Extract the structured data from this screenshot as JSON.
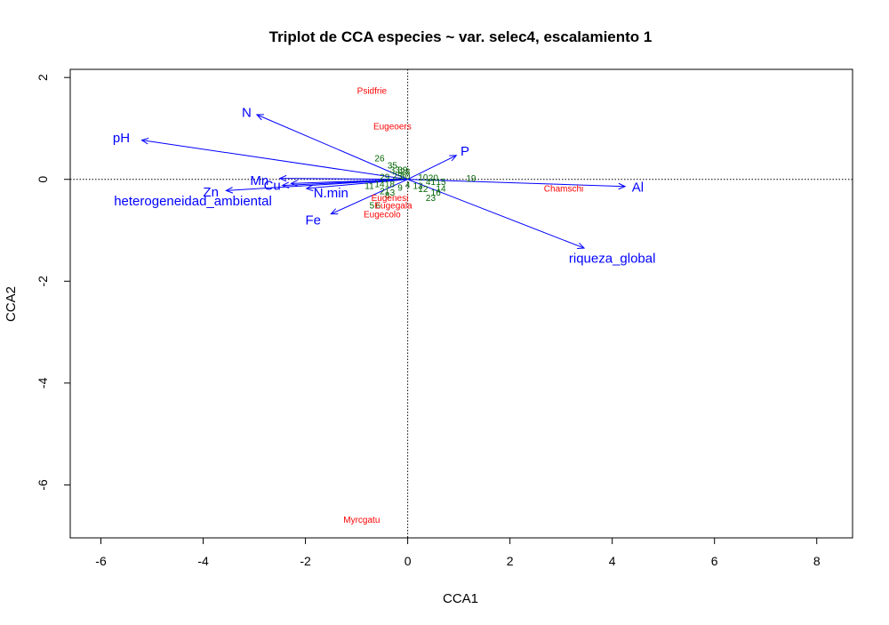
{
  "chart_data": {
    "type": "scatter",
    "title": "Triplot de CCA especies ~ var. selec4, escalamiento 1",
    "xlabel": "CCA1",
    "ylabel": "CCA2",
    "xlim": [
      -6.6,
      8.7
    ],
    "ylim": [
      -7.04,
      2.16
    ],
    "xticks": [
      -6,
      -4,
      -2,
      0,
      2,
      4,
      6,
      8
    ],
    "yticks": [
      -6,
      -4,
      -2,
      0,
      2
    ],
    "colors": {
      "sites": "#006400",
      "species": "#ff0000",
      "arrows": "#0000ff",
      "axes": "#000000"
    },
    "reference_lines": {
      "x": 0,
      "y": 0,
      "style": "dotted"
    },
    "species": [
      {
        "name": "Psidfrie",
        "x": -0.7,
        "y": 1.75
      },
      {
        "name": "Eugeoers",
        "x": -0.3,
        "y": 1.05
      },
      {
        "name": "Chamschi",
        "x": 3.05,
        "y": -0.17
      },
      {
        "name": "Eugenesi",
        "x": -0.35,
        "y": -0.35
      },
      {
        "name": "Eugegala",
        "x": -0.28,
        "y": -0.5
      },
      {
        "name": "Eugecolo",
        "x": -0.5,
        "y": -0.68
      },
      {
        "name": "Myrcgatu",
        "x": -0.9,
        "y": -6.67
      }
    ],
    "sites": [
      {
        "label": "26",
        "x": -0.55,
        "y": 0.42
      },
      {
        "label": "35",
        "x": -0.3,
        "y": 0.28
      },
      {
        "label": "33",
        "x": -0.25,
        "y": 0.2
      },
      {
        "label": "39",
        "x": -0.1,
        "y": 0.2
      },
      {
        "label": "28",
        "x": -0.05,
        "y": 0.16
      },
      {
        "label": "29",
        "x": -0.45,
        "y": 0.06
      },
      {
        "label": "25",
        "x": -0.2,
        "y": 0.07
      },
      {
        "label": "30",
        "x": -0.05,
        "y": 0.07
      },
      {
        "label": "10",
        "x": 0.3,
        "y": 0.05
      },
      {
        "label": "20",
        "x": 0.5,
        "y": 0.04
      },
      {
        "label": "41",
        "x": 0.45,
        "y": -0.04
      },
      {
        "label": "15",
        "x": 0.65,
        "y": -0.04
      },
      {
        "label": "19",
        "x": 1.24,
        "y": 0.03
      },
      {
        "label": "11",
        "x": -0.75,
        "y": -0.12
      },
      {
        "label": "14",
        "x": -0.55,
        "y": -0.08
      },
      {
        "label": "18",
        "x": -0.35,
        "y": -0.08
      },
      {
        "label": "4",
        "x": 0.0,
        "y": -0.1
      },
      {
        "label": "13",
        "x": 0.2,
        "y": -0.12
      },
      {
        "label": "12",
        "x": 0.3,
        "y": -0.18
      },
      {
        "label": "14",
        "x": 0.65,
        "y": -0.17
      },
      {
        "label": "16",
        "x": 0.55,
        "y": -0.25
      },
      {
        "label": "23",
        "x": 0.45,
        "y": -0.35
      },
      {
        "label": "21",
        "x": -0.45,
        "y": -0.22
      },
      {
        "label": "3",
        "x": -0.3,
        "y": -0.25
      },
      {
        "label": "5",
        "x": -0.7,
        "y": -0.5
      },
      {
        "label": "6",
        "x": -0.58,
        "y": -0.5
      },
      {
        "label": "8",
        "x": -0.4,
        "y": -0.3
      },
      {
        "label": "9",
        "x": -0.15,
        "y": -0.15
      }
    ],
    "arrows": [
      {
        "name": "pH",
        "x": -5.2,
        "y": 0.77,
        "label_x": -5.6,
        "label_y": 0.82
      },
      {
        "name": "N",
        "x": -2.95,
        "y": 1.27,
        "label_x": -3.15,
        "label_y": 1.31
      },
      {
        "name": "Mn",
        "x": -2.5,
        "y": 0.02,
        "label_x": -2.9,
        "label_y": -0.02
      },
      {
        "name": "Cu",
        "x": -2.28,
        "y": -0.08,
        "label_x": -2.65,
        "label_y": -0.12
      },
      {
        "name": "Zn",
        "x": -3.55,
        "y": -0.22,
        "label_x": -3.85,
        "label_y": -0.25
      },
      {
        "name": "heterogeneidad_ambiental",
        "x": -2.45,
        "y": -0.12,
        "label_x": -4.2,
        "label_y": -0.42
      },
      {
        "name": "N.min",
        "x": -1.98,
        "y": -0.18,
        "label_x": -1.5,
        "label_y": -0.27
      },
      {
        "name": "Fe",
        "x": -1.5,
        "y": -0.68,
        "label_x": -1.85,
        "label_y": -0.8
      },
      {
        "name": "P",
        "x": 0.95,
        "y": 0.47,
        "label_x": 1.12,
        "label_y": 0.55
      },
      {
        "name": "Al",
        "x": 4.25,
        "y": -0.14,
        "label_x": 4.5,
        "label_y": -0.15
      },
      {
        "name": "riqueza_global",
        "x": 3.45,
        "y": -1.35,
        "label_x": 4.0,
        "label_y": -1.55
      }
    ]
  }
}
